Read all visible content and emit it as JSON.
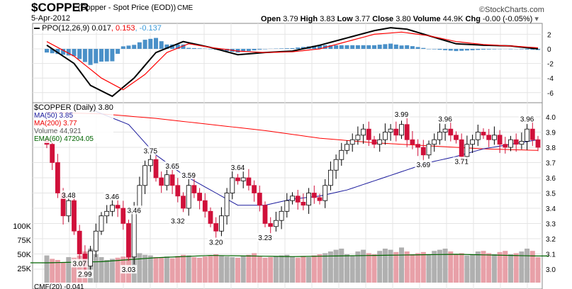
{
  "header": {
    "symbol": "$COPPER",
    "description": "(Copper - Spot Price (EOD))",
    "exchange": "CME",
    "date": "5-Apr-2012",
    "copyright": "©StockCharts.com",
    "open_label": "Open",
    "open": "3.79",
    "high_label": "High",
    "high": "3.83",
    "low_label": "Low",
    "low": "3.77",
    "close_label": "Close",
    "close": "3.80",
    "volume_label": "Volume",
    "volume": "44.9K",
    "chg_label": "Chg",
    "chg": "-0.00 (-0.05%)"
  },
  "ppo_legend": {
    "label": "PPO(12,26,9) 0.017",
    "signal": ", 0.153",
    "hist": ", -0.137"
  },
  "price_legend": {
    "title": "$COPPER (Daily) 3.80",
    "ma50": "MA(50) 3.85",
    "ma200": "MA(200) 3.77",
    "volume": "Volume 44,921",
    "ema60": "EMA(60) 47204.05"
  },
  "bottom_legend": "CMF(20) -0.041",
  "colors": {
    "up": "#ffffff",
    "down": "#d0103a",
    "ma50": "#1a1a9c",
    "ma200": "#ff0000",
    "ema": "#006400",
    "ppo": "#000000",
    "signal": "#ff0000",
    "hist": "#4a90c8",
    "vol_up": "#b0b0b0",
    "vol_down": "#e8a0a8"
  },
  "chart_data": [
    {
      "type": "line",
      "title": "PPO(12,26,9)",
      "ylim": [
        -7,
        3
      ],
      "yticks": [
        "2",
        "0",
        "-2",
        "-4",
        "-6"
      ],
      "ytick_values": [
        2,
        0,
        -2,
        -4,
        -6
      ],
      "series": [
        {
          "name": "PPO",
          "x": [
            0,
            5,
            8,
            12,
            16,
            20,
            25,
            30,
            35,
            40,
            45,
            50,
            55,
            60,
            63,
            66,
            70,
            75,
            80,
            85,
            90
          ],
          "values": [
            0.5,
            -2,
            -5,
            -6.5,
            -4,
            -0.5,
            1,
            0.2,
            -0.8,
            -0.5,
            -0.3,
            0.5,
            1.5,
            2.5,
            2.9,
            2.7,
            1.8,
            0.7,
            0.5,
            0.4,
            0.0
          ]
        },
        {
          "name": "Signal",
          "x": [
            0,
            5,
            10,
            14,
            18,
            22,
            26,
            30,
            35,
            40,
            45,
            50,
            55,
            60,
            65,
            70,
            75,
            80,
            85,
            90
          ],
          "values": [
            1,
            -1,
            -4,
            -5.6,
            -3.5,
            -0.5,
            0.7,
            0.2,
            -0.3,
            -0.5,
            -0.4,
            0,
            1,
            2,
            2.3,
            1.8,
            1,
            0.6,
            0.4,
            0.15
          ]
        }
      ]
    },
    {
      "type": "candlestick",
      "title": "$COPPER (Daily)",
      "ylim": [
        2.9,
        4.05
      ],
      "yticks": [
        "4.0",
        "3.9",
        "3.8",
        "3.7",
        "3.6",
        "3.5",
        "3.4",
        "3.3",
        "3.2",
        "3.1",
        "3.0"
      ],
      "close": [
        3.82,
        3.7,
        3.5,
        3.35,
        3.45,
        3.25,
        3.1,
        3.02,
        3.12,
        3.25,
        3.35,
        3.38,
        3.42,
        3.4,
        3.3,
        3.08,
        3.4,
        3.55,
        3.68,
        3.72,
        3.6,
        3.55,
        3.62,
        3.55,
        3.48,
        3.4,
        3.55,
        3.5,
        3.45,
        3.38,
        3.3,
        3.25,
        3.35,
        3.5,
        3.6,
        3.58,
        3.6,
        3.55,
        3.5,
        3.42,
        3.3,
        3.28,
        3.32,
        3.38,
        3.45,
        3.48,
        3.44,
        3.42,
        3.5,
        3.47,
        3.45,
        3.55,
        3.65,
        3.72,
        3.78,
        3.82,
        3.85,
        3.88,
        3.92,
        3.85,
        3.82,
        3.85,
        3.9,
        3.92,
        3.88,
        3.95,
        3.85,
        3.82,
        3.8,
        3.75,
        3.82,
        3.85,
        3.9,
        3.92,
        3.88,
        3.85,
        3.74,
        3.82,
        3.85,
        3.9,
        3.88,
        3.85,
        3.88,
        3.82,
        3.8,
        3.85,
        3.82,
        3.84,
        3.92,
        3.85,
        3.8
      ],
      "ma50": {
        "x": [
          8,
          15,
          20,
          25,
          30,
          35,
          40,
          45,
          50,
          55,
          60,
          65,
          70,
          75,
          80,
          85,
          90
        ],
        "values": [
          4.05,
          3.95,
          3.75,
          3.62,
          3.52,
          3.42,
          3.42,
          3.46,
          3.48,
          3.52,
          3.58,
          3.64,
          3.7,
          3.74,
          3.79,
          3.82,
          3.85
        ]
      },
      "ma200": {
        "x": [
          0,
          10,
          20,
          30,
          40,
          50,
          60,
          70,
          80,
          90
        ],
        "values": [
          4.03,
          4.02,
          3.99,
          3.95,
          3.91,
          3.86,
          3.83,
          3.81,
          3.79,
          3.78
        ]
      },
      "annotations": [
        {
          "i": 6,
          "text": "3.48",
          "v": 3.48,
          "at": 4
        },
        {
          "i": 6,
          "text": "3.07",
          "v": 3.03
        },
        {
          "i": 7,
          "text": "2.99",
          "v": 2.96
        },
        {
          "i": 12,
          "text": "3.46",
          "v": 3.47
        },
        {
          "i": 15,
          "text": "3.03",
          "v": 2.99
        },
        {
          "i": 19,
          "text": "3.75",
          "v": 3.77
        },
        {
          "i": 16,
          "text": "3.46",
          "v": 3.38
        },
        {
          "i": 23,
          "text": "3.65",
          "v": 3.67
        },
        {
          "i": 26,
          "text": "3.59",
          "v": 3.61
        },
        {
          "i": 24,
          "text": "3.32",
          "v": 3.31
        },
        {
          "i": 31,
          "text": "3.20",
          "v": 3.17
        },
        {
          "i": 35,
          "text": "3.64",
          "v": 3.66
        },
        {
          "i": 40,
          "text": "3.23",
          "v": 3.2
        },
        {
          "i": 65,
          "text": "3.99",
          "v": 4.01
        },
        {
          "i": 69,
          "text": "3.69",
          "v": 3.68
        },
        {
          "i": 73,
          "text": "3.96",
          "v": 3.98
        },
        {
          "i": 76,
          "text": "3.71",
          "v": 3.7
        },
        {
          "i": 88,
          "text": "3.96",
          "v": 3.98
        }
      ]
    },
    {
      "type": "bar",
      "title": "Volume",
      "yticks": [
        "100K",
        "75K",
        "50K",
        "25K"
      ],
      "ytick_values": [
        100000,
        75000,
        50000,
        25000
      ],
      "values": [
        48,
        42,
        40,
        35,
        45,
        44,
        48,
        55,
        60,
        50,
        45,
        40,
        42,
        44,
        46,
        50,
        47,
        52,
        49,
        48,
        45,
        44,
        46,
        43,
        47,
        49,
        48,
        45,
        44,
        46,
        47,
        50,
        48,
        46,
        45,
        44,
        47,
        49,
        52,
        46,
        44,
        45,
        47,
        48,
        49,
        46,
        44,
        47,
        45,
        48,
        50,
        52,
        55,
        58,
        60,
        50,
        48,
        55,
        58,
        52,
        50,
        56,
        60,
        58,
        54,
        62,
        55,
        50,
        52,
        54,
        50,
        56,
        58,
        60,
        55,
        50,
        52,
        48,
        50,
        55,
        56,
        52,
        50,
        54,
        56,
        50,
        52,
        55,
        60,
        56,
        45
      ],
      "ema60": {
        "x": [
          0,
          10,
          20,
          30,
          45,
          60,
          75,
          90
        ],
        "values": [
          35,
          37,
          44,
          48,
          46,
          48,
          50,
          47
        ]
      }
    }
  ]
}
